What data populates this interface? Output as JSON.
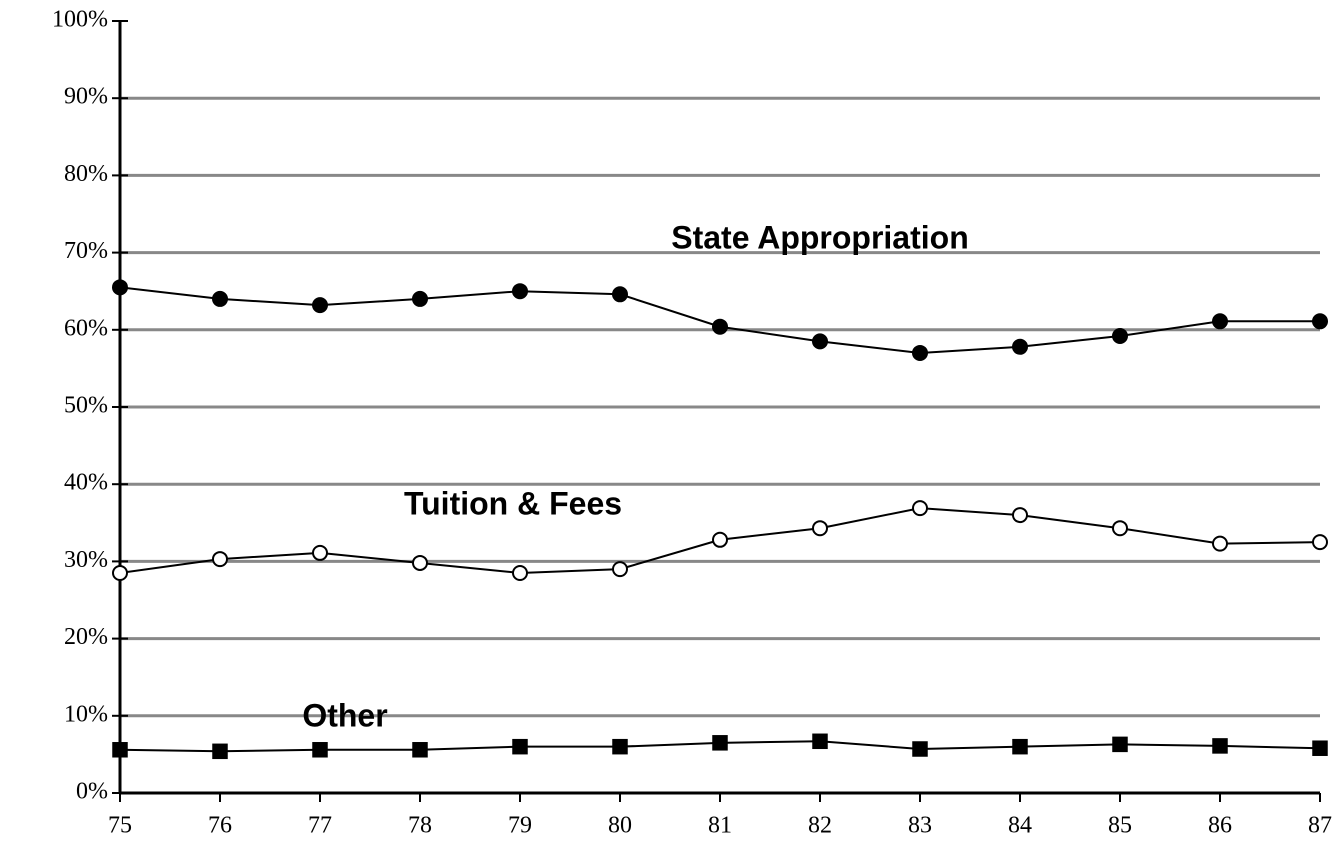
{
  "chart_data": {
    "type": "line",
    "categories": [
      "75",
      "76",
      "77",
      "78",
      "79",
      "80",
      "81",
      "82",
      "83",
      "84",
      "85",
      "86",
      "87"
    ],
    "series": [
      {
        "name": "State Appropriation",
        "color": "#000000",
        "marker": "circle",
        "marker_fill": "#000000",
        "values": [
          65.5,
          64.0,
          63.2,
          64.0,
          65.0,
          64.6,
          60.4,
          58.5,
          57.0,
          57.8,
          59.2,
          61.1,
          61.1
        ]
      },
      {
        "name": "Tuition & Fees",
        "color": "#000000",
        "marker": "circle",
        "marker_fill": "#ffffff",
        "values": [
          28.5,
          30.3,
          31.1,
          29.8,
          28.5,
          29.0,
          32.8,
          34.3,
          36.9,
          36.0,
          34.3,
          32.3,
          32.5
        ]
      },
      {
        "name": "Other",
        "color": "#000000",
        "marker": "square",
        "marker_fill": "#000000",
        "values": [
          5.6,
          5.4,
          5.6,
          5.6,
          6.0,
          6.0,
          6.5,
          6.7,
          5.7,
          6.0,
          6.3,
          6.1,
          5.8
        ]
      }
    ],
    "ylim": [
      0,
      100
    ],
    "yticks": [
      {
        "value": 0,
        "label": "0%"
      },
      {
        "value": 10,
        "label": "10%"
      },
      {
        "value": 20,
        "label": "20%"
      },
      {
        "value": 30,
        "label": "30%"
      },
      {
        "value": 40,
        "label": "40%"
      },
      {
        "value": 50,
        "label": "50%"
      },
      {
        "value": 60,
        "label": "60%"
      },
      {
        "value": 70,
        "label": "70%"
      },
      {
        "value": 80,
        "label": "80%"
      },
      {
        "value": 90,
        "label": "90%"
      },
      {
        "value": 100,
        "label": "100%"
      }
    ],
    "grid": true,
    "grid_color": "#888888"
  }
}
